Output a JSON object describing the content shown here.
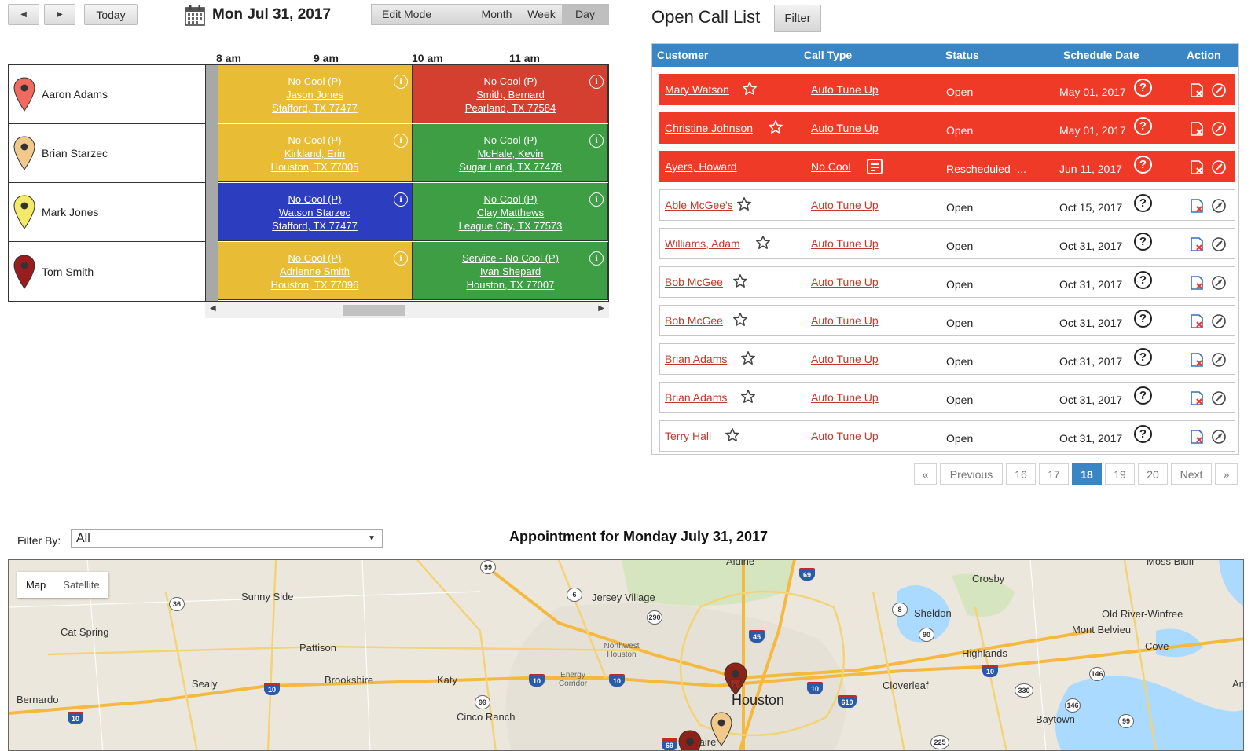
{
  "toolbar": {
    "today_label": "Today",
    "date_title": "Mon Jul 31, 2017",
    "views": {
      "edit_mode": "Edit Mode",
      "month": "Month",
      "week": "Week",
      "day": "Day"
    },
    "active_view": "Day"
  },
  "schedule": {
    "time_labels": [
      "8 am",
      "9 am",
      "10 am",
      "11 am"
    ],
    "resources": [
      {
        "name": "Aaron Adams",
        "pin_color": "#f06a5f"
      },
      {
        "name": "Brian Starzec",
        "pin_color": "#f2c98a"
      },
      {
        "name": "Mark Jones",
        "pin_color": "#f5e96a"
      },
      {
        "name": "Tom Smith",
        "pin_color": "#9b1c1c"
      }
    ],
    "appointments": [
      {
        "row": 0,
        "col": 0,
        "color": "#e8bc34",
        "lines": [
          "No Cool (P)",
          "Jason Jones",
          "Stafford, TX 77477"
        ]
      },
      {
        "row": 0,
        "col": 1,
        "color": "#d43f2f",
        "lines": [
          "No Cool (P)",
          "Smith, Bernard",
          "Pearland, TX 77584"
        ]
      },
      {
        "row": 1,
        "col": 0,
        "color": "#e8bc34",
        "lines": [
          "No Cool (P)",
          "Kirkland, Erin",
          "Houston, TX 77005"
        ]
      },
      {
        "row": 1,
        "col": 1,
        "color": "#3e9e44",
        "lines": [
          "No Cool (P)",
          "McHale, Kevin",
          "Sugar Land, TX 77478"
        ]
      },
      {
        "row": 2,
        "col": 0,
        "color": "#2c3ebf",
        "lines": [
          "No Cool (P)",
          "Watson Starzec",
          "Stafford, TX 77477"
        ]
      },
      {
        "row": 2,
        "col": 1,
        "color": "#3e9e44",
        "lines": [
          "No Cool (P)",
          "Clay Matthews",
          "League City, TX 77573"
        ]
      },
      {
        "row": 3,
        "col": 0,
        "color": "#e8bc34",
        "lines": [
          "No Cool (P)",
          "Adrienne Smith",
          "Houston, TX 77096"
        ]
      },
      {
        "row": 3,
        "col": 1,
        "color": "#3e9e44",
        "lines": [
          "Service - No Cool (P)",
          "Ivan Shepard",
          "Houston, TX 77007"
        ]
      }
    ]
  },
  "open_call_list": {
    "title": "Open Call List",
    "filter_label": "Filter",
    "columns": [
      "Customer",
      "Call Type",
      "Status",
      "Schedule Date",
      "Action"
    ],
    "rows": [
      {
        "customer": "Mary Watson",
        "call_type": "Auto Tune Up",
        "status": "Open",
        "date": "May 01, 2017",
        "overdue": true,
        "icon": "star"
      },
      {
        "customer": "Christine Johnson",
        "call_type": "Auto Tune Up",
        "status": "Open",
        "date": "May 01, 2017",
        "overdue": true,
        "icon": "star"
      },
      {
        "customer": "Ayers, Howard",
        "call_type": "No Cool",
        "status": "Rescheduled -...",
        "date": "Jun 11, 2017",
        "overdue": true,
        "icon": "note"
      },
      {
        "customer": "Able McGee's",
        "call_type": "Auto Tune Up",
        "status": "Open",
        "date": "Oct 15, 2017",
        "overdue": false,
        "icon": "star"
      },
      {
        "customer": "Williams, Adam",
        "call_type": "Auto Tune Up",
        "status": "Open",
        "date": "Oct 31, 2017",
        "overdue": false,
        "icon": "star"
      },
      {
        "customer": "Bob McGee",
        "call_type": "Auto Tune Up",
        "status": "Open",
        "date": "Oct 31, 2017",
        "overdue": false,
        "icon": "star"
      },
      {
        "customer": "Bob McGee",
        "call_type": "Auto Tune Up",
        "status": "Open",
        "date": "Oct 31, 2017",
        "overdue": false,
        "icon": "star"
      },
      {
        "customer": "Brian Adams",
        "call_type": "Auto Tune Up",
        "status": "Open",
        "date": "Oct 31, 2017",
        "overdue": false,
        "icon": "star"
      },
      {
        "customer": "Brian Adams",
        "call_type": "Auto Tune Up",
        "status": "Open",
        "date": "Oct 31, 2017",
        "overdue": false,
        "icon": "star"
      },
      {
        "customer": "Terry Hall",
        "call_type": "Auto Tune Up",
        "status": "Open",
        "date": "Oct 31, 2017",
        "overdue": false,
        "icon": "star"
      }
    ],
    "pagination": {
      "first": "«",
      "previous": "Previous",
      "pages": [
        "16",
        "17",
        "18",
        "19",
        "20"
      ],
      "current": "18",
      "next": "Next",
      "last": "»"
    }
  },
  "map_section": {
    "filter_label": "Filter By:",
    "filter_value": "All",
    "title": "Appointment for Monday July 31, 2017",
    "map_type": {
      "map": "Map",
      "satellite": "Satellite",
      "active": "Map"
    },
    "places": [
      "Aldine",
      "Moss Bluff",
      "Crosby",
      "Sunny Side",
      "Jersey Village",
      "Sheldon",
      "Old River-Winfree",
      "Cat Spring",
      "Mont Belvieu",
      "Pattison",
      "Northwest Houston",
      "Highlands",
      "Cove",
      "Brookshire",
      "Katy",
      "Energy Corridor",
      "Cloverleaf",
      "Sealy",
      "Houston",
      "Bernardo",
      "Cinco Ranch",
      "Baytown",
      "Bellaire",
      "An"
    ],
    "shields": [
      "99",
      "69",
      "36",
      "6",
      "290",
      "8",
      "90",
      "45",
      "10",
      "10",
      "10",
      "10",
      "10",
      "10",
      "610",
      "146",
      "330",
      "146",
      "99",
      "99",
      "225",
      "69"
    ]
  }
}
